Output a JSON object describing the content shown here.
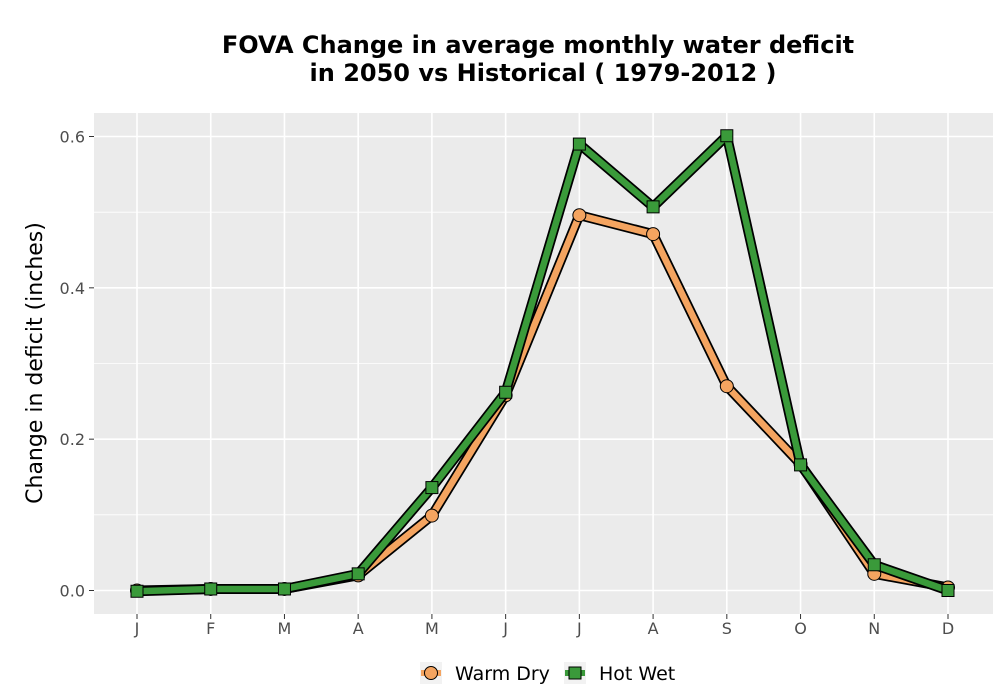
{
  "chart_data": {
    "type": "line",
    "title_lines": [
      "FOVA  Change in average monthly water deficit",
      "in 2050 vs Historical ( 1979-2012 )"
    ],
    "xlabel": "",
    "ylabel": "Change in deficit (inches)",
    "categories": [
      "J",
      "F",
      "M",
      "A",
      "M",
      "J",
      "J",
      "A",
      "S",
      "O",
      "N",
      "D"
    ],
    "yticks": [
      "0.0",
      "0.2",
      "0.4",
      "0.6"
    ],
    "ylim": [
      -0.03,
      0.63
    ],
    "grid": true,
    "legend_position": "bottom",
    "series": [
      {
        "name": "Warm Dry",
        "color": "#f4a460",
        "marker": "circle",
        "values": [
          0.0,
          0.002,
          0.002,
          0.02,
          0.099,
          0.258,
          0.496,
          0.471,
          0.27,
          0.167,
          0.022,
          0.004
        ]
      },
      {
        "name": "Hot Wet",
        "color": "#3a9a3a",
        "marker": "square",
        "values": [
          -0.001,
          0.002,
          0.002,
          0.022,
          0.136,
          0.262,
          0.59,
          0.507,
          0.601,
          0.166,
          0.034,
          0.0
        ]
      }
    ],
    "colors": {
      "panel_background": "#ebebeb",
      "grid_major": "#ffffff",
      "outline": "#000000"
    }
  }
}
